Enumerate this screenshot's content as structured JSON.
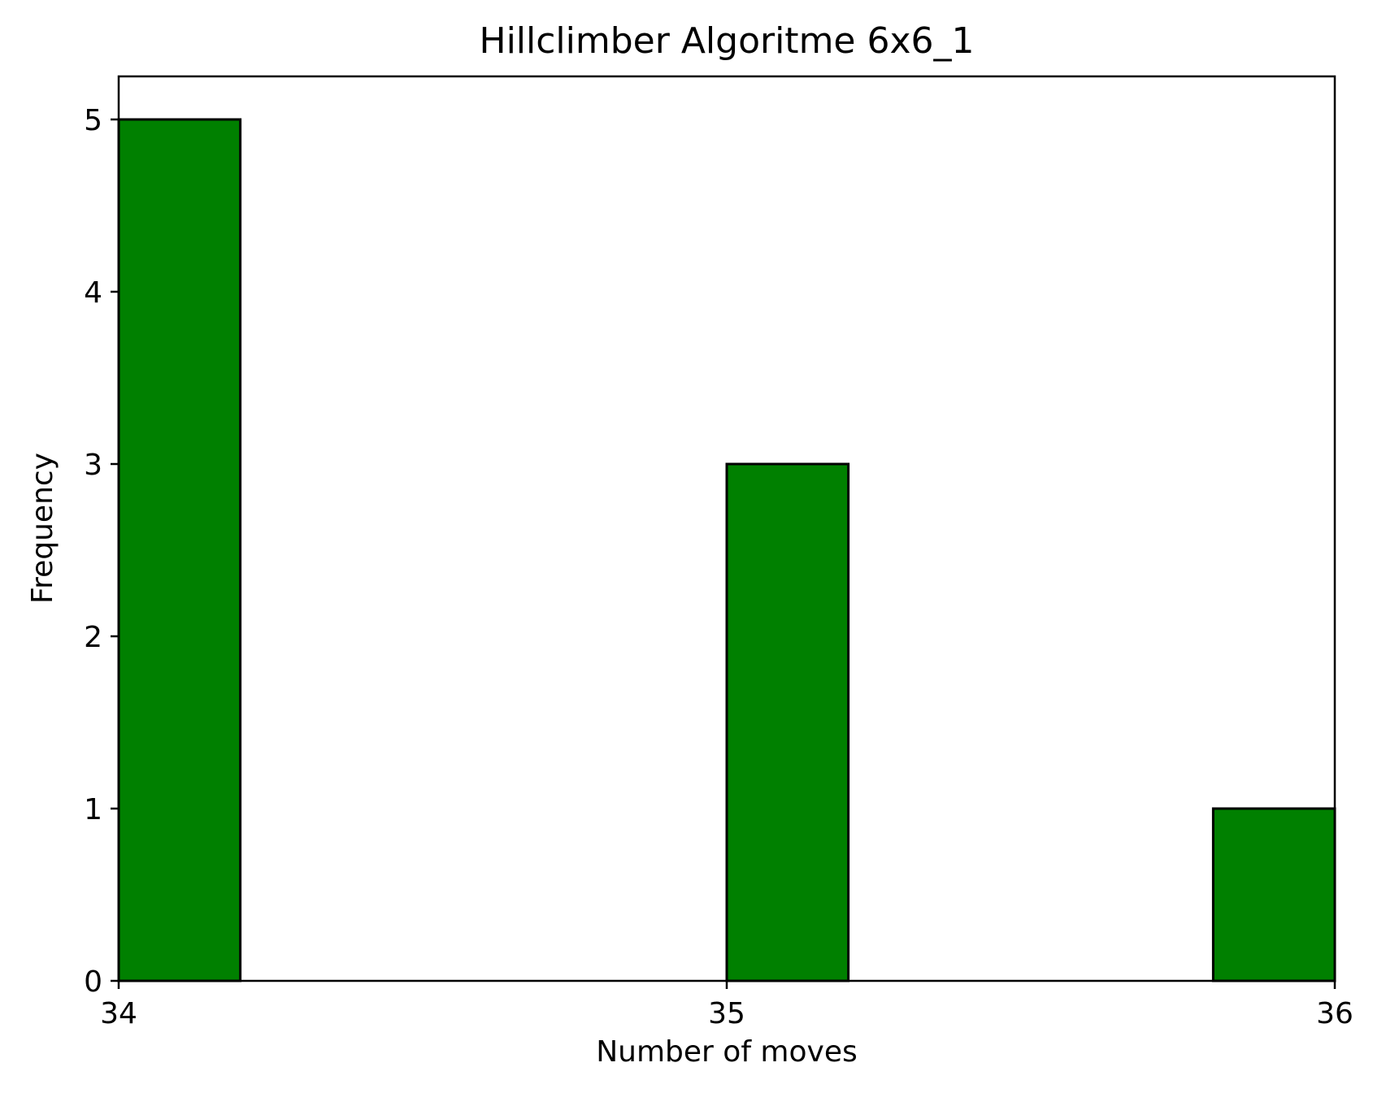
{
  "chart_data": {
    "type": "bar",
    "title": "Hillclimber Algoritme 6x6_1",
    "xlabel": "Number of moves",
    "ylabel": "Frequency",
    "xlim": [
      34,
      36
    ],
    "ylim": [
      0,
      5.25
    ],
    "xticks": [
      "34",
      "35",
      "36"
    ],
    "yticks": [
      "0",
      "1",
      "2",
      "3",
      "4",
      "5"
    ],
    "bin_width": 0.2,
    "bins": [
      {
        "start": 34.0,
        "end": 34.2,
        "count": 5
      },
      {
        "start": 34.2,
        "end": 34.4,
        "count": 0
      },
      {
        "start": 34.4,
        "end": 34.6,
        "count": 0
      },
      {
        "start": 34.6,
        "end": 34.8,
        "count": 0
      },
      {
        "start": 34.8,
        "end": 35.0,
        "count": 0
      },
      {
        "start": 35.0,
        "end": 35.2,
        "count": 3
      },
      {
        "start": 35.2,
        "end": 35.4,
        "count": 0
      },
      {
        "start": 35.4,
        "end": 35.6,
        "count": 0
      },
      {
        "start": 35.6,
        "end": 35.8,
        "count": 0
      },
      {
        "start": 35.8,
        "end": 36.0,
        "count": 1
      }
    ],
    "bar_color": "#008000",
    "edge_color": "#000000",
    "grid": false,
    "legend": false
  }
}
